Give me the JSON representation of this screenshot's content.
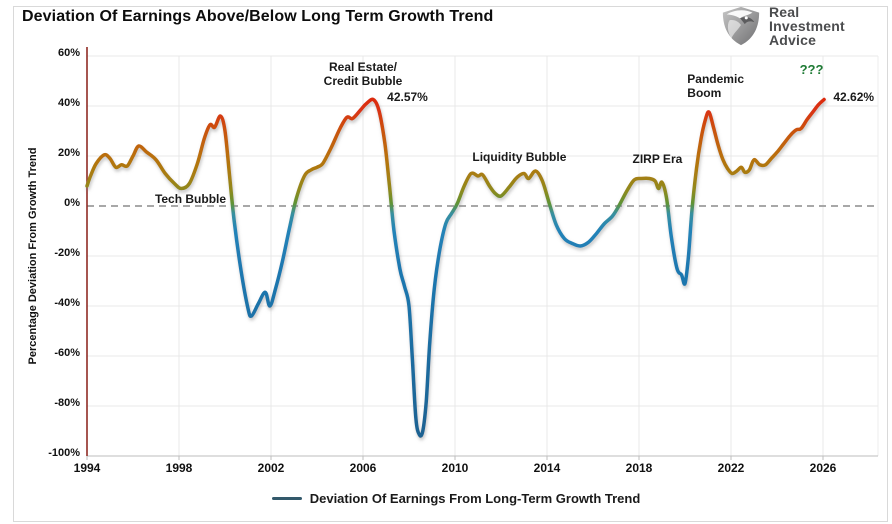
{
  "title": "Deviation Of Earnings Above/Below Long Term Growth Trend",
  "logo": {
    "lines": [
      "Real",
      "Investment",
      "Advice"
    ]
  },
  "legend": {
    "label": "Deviation Of Earnings From Long-Term Growth Trend",
    "swatch_color": "#33596b"
  },
  "colors": {
    "zero_line": "#a8a8a8",
    "y_axis_line": "#8f2b24",
    "x_axis_line": "#bdbdbd",
    "gridline": "#e9e9e9",
    "plot_right_border": "#ececec",
    "annotation_text": "#1a1a1a",
    "annotation_green": "#1e7a34"
  },
  "chart_data": {
    "type": "line",
    "title": "Deviation Of Earnings Above/Below Long Term Growth Trend",
    "xlabel": "",
    "ylabel": "Percentage Deviation From Growth Trend",
    "ylim": [
      -100,
      60
    ],
    "ytick_step": 20,
    "ytick_labels": [
      "60%",
      "40%",
      "20%",
      "0%",
      "-20%",
      "-40%",
      "-60%",
      "-80%",
      "-100%"
    ],
    "xticks": [
      1994,
      1998,
      2002,
      2006,
      2010,
      2014,
      2018,
      2022,
      2026
    ],
    "grid": true,
    "zero_line_dashed": true,
    "legend_position": "bottom",
    "value_color_gradient": [
      [
        64,
        "#e01e0f"
      ],
      [
        50,
        "#e01e0f"
      ],
      [
        38,
        "#d93412"
      ],
      [
        30,
        "#c95410"
      ],
      [
        20,
        "#b9700f"
      ],
      [
        12,
        "#a67f12"
      ],
      [
        6,
        "#8d8a1e"
      ],
      [
        1,
        "#5f9335"
      ],
      [
        -3,
        "#38909f"
      ],
      [
        -10,
        "#2383b8"
      ],
      [
        -25,
        "#1f78b0"
      ],
      [
        -100,
        "#1a5f8e"
      ]
    ],
    "series": [
      {
        "name": "Deviation Of Earnings From Long-Term Growth Trend",
        "points": [
          [
            1994.0,
            8
          ],
          [
            1994.15,
            12
          ],
          [
            1994.4,
            17
          ],
          [
            1994.75,
            20.5
          ],
          [
            1995.0,
            19
          ],
          [
            1995.25,
            15.5
          ],
          [
            1995.5,
            16.5
          ],
          [
            1995.75,
            16
          ],
          [
            1996.0,
            20
          ],
          [
            1996.25,
            24
          ],
          [
            1996.6,
            21.5
          ],
          [
            1997.0,
            18.5
          ],
          [
            1997.4,
            13
          ],
          [
            1997.8,
            9
          ],
          [
            1998.1,
            7
          ],
          [
            1998.45,
            9
          ],
          [
            1998.8,
            17
          ],
          [
            1999.1,
            27
          ],
          [
            1999.35,
            32.5
          ],
          [
            1999.55,
            31.5
          ],
          [
            1999.8,
            36
          ],
          [
            2000.0,
            30
          ],
          [
            2000.2,
            12
          ],
          [
            2000.4,
            -6
          ],
          [
            2000.7,
            -26
          ],
          [
            2001.0,
            -41
          ],
          [
            2001.15,
            -44
          ],
          [
            2001.45,
            -39
          ],
          [
            2001.75,
            -34.5
          ],
          [
            2001.95,
            -40
          ],
          [
            2002.2,
            -33
          ],
          [
            2002.5,
            -22
          ],
          [
            2002.8,
            -9
          ],
          [
            2003.1,
            3
          ],
          [
            2003.45,
            12
          ],
          [
            2003.75,
            14.5
          ],
          [
            2004.0,
            15.5
          ],
          [
            2004.25,
            17
          ],
          [
            2004.6,
            23
          ],
          [
            2005.0,
            31
          ],
          [
            2005.3,
            35.5
          ],
          [
            2005.55,
            35
          ],
          [
            2005.9,
            38.5
          ],
          [
            2006.15,
            41
          ],
          [
            2006.45,
            42.57
          ],
          [
            2006.7,
            38
          ],
          [
            2006.95,
            25
          ],
          [
            2007.15,
            8
          ],
          [
            2007.35,
            -10
          ],
          [
            2007.6,
            -25
          ],
          [
            2007.8,
            -32
          ],
          [
            2008.0,
            -40
          ],
          [
            2008.15,
            -62
          ],
          [
            2008.3,
            -85
          ],
          [
            2008.45,
            -91.5
          ],
          [
            2008.6,
            -90
          ],
          [
            2008.75,
            -78
          ],
          [
            2008.9,
            -55
          ],
          [
            2009.1,
            -33
          ],
          [
            2009.35,
            -17
          ],
          [
            2009.6,
            -7
          ],
          [
            2009.85,
            -3
          ],
          [
            2010.1,
            1
          ],
          [
            2010.4,
            8
          ],
          [
            2010.7,
            13
          ],
          [
            2011.0,
            12
          ],
          [
            2011.2,
            12.5
          ],
          [
            2011.5,
            8
          ],
          [
            2011.75,
            5
          ],
          [
            2012.0,
            4
          ],
          [
            2012.35,
            7.5
          ],
          [
            2012.7,
            11.5
          ],
          [
            2013.0,
            13
          ],
          [
            2013.2,
            11
          ],
          [
            2013.5,
            14
          ],
          [
            2013.8,
            10
          ],
          [
            2014.1,
            1
          ],
          [
            2014.4,
            -7.5
          ],
          [
            2014.75,
            -13
          ],
          [
            2015.1,
            -15
          ],
          [
            2015.45,
            -16
          ],
          [
            2015.8,
            -14.5
          ],
          [
            2016.15,
            -11
          ],
          [
            2016.5,
            -7
          ],
          [
            2016.85,
            -4
          ],
          [
            2017.15,
            0.5
          ],
          [
            2017.5,
            6.5
          ],
          [
            2017.8,
            10.5
          ],
          [
            2018.1,
            11
          ],
          [
            2018.45,
            11
          ],
          [
            2018.7,
            10
          ],
          [
            2018.85,
            7
          ],
          [
            2019.0,
            9.5
          ],
          [
            2019.2,
            3
          ],
          [
            2019.4,
            -12
          ],
          [
            2019.65,
            -25
          ],
          [
            2019.85,
            -27.5
          ],
          [
            2020.0,
            -31
          ],
          [
            2020.15,
            -20
          ],
          [
            2020.3,
            -2
          ],
          [
            2020.5,
            15
          ],
          [
            2020.7,
            27
          ],
          [
            2020.9,
            35
          ],
          [
            2021.05,
            37.5
          ],
          [
            2021.25,
            31
          ],
          [
            2021.45,
            24
          ],
          [
            2021.65,
            18.5
          ],
          [
            2021.85,
            15
          ],
          [
            2022.05,
            13
          ],
          [
            2022.25,
            14
          ],
          [
            2022.45,
            15.5
          ],
          [
            2022.6,
            13.5
          ],
          [
            2022.8,
            14.5
          ],
          [
            2023.0,
            18.5
          ],
          [
            2023.25,
            16.5
          ],
          [
            2023.5,
            16.5
          ],
          [
            2023.75,
            19
          ],
          [
            2024.0,
            21.5
          ],
          [
            2024.3,
            25
          ],
          [
            2024.6,
            28.5
          ],
          [
            2024.85,
            30.5
          ],
          [
            2025.05,
            31
          ],
          [
            2025.3,
            34.5
          ],
          [
            2025.55,
            37.5
          ],
          [
            2025.8,
            40.5
          ],
          [
            2026.05,
            42.62
          ]
        ]
      }
    ],
    "annotations": [
      {
        "id": "tech-bubble",
        "text": "Tech Bubble",
        "x": 1998.5,
        "y": 3,
        "align": "center",
        "color": "#1a1a1a",
        "size": 12
      },
      {
        "id": "real-estate-credit-bubble",
        "text": "Real Estate/\nCredit Bubble",
        "x": 2006.0,
        "y": 53,
        "align": "center",
        "color": "#1a1a1a",
        "size": 12
      },
      {
        "id": "peak-2007-value",
        "text": "42.57%",
        "x": 2007.05,
        "y": 43.5,
        "align": "left",
        "color": "#1a1a1a",
        "size": 12
      },
      {
        "id": "liquidity-bubble",
        "text": "Liquidity Bubble",
        "x": 2012.8,
        "y": 19.5,
        "align": "center",
        "color": "#1a1a1a",
        "size": 12
      },
      {
        "id": "zirp-era",
        "text": "ZIRP Era",
        "x": 2018.8,
        "y": 19,
        "align": "center",
        "color": "#1a1a1a",
        "size": 12
      },
      {
        "id": "pandemic-boom",
        "text": "Pandemic\nBoom",
        "x": 2020.1,
        "y": 48,
        "align": "left",
        "color": "#1a1a1a",
        "size": 12
      },
      {
        "id": "question-marks",
        "text": "???",
        "x": 2025.5,
        "y": 54.5,
        "align": "center",
        "color": "#1e7a34",
        "size": 13
      },
      {
        "id": "current-value",
        "text": "42.62%",
        "x": 2026.45,
        "y": 43.5,
        "align": "left",
        "color": "#1a1a1a",
        "size": 12
      }
    ]
  }
}
